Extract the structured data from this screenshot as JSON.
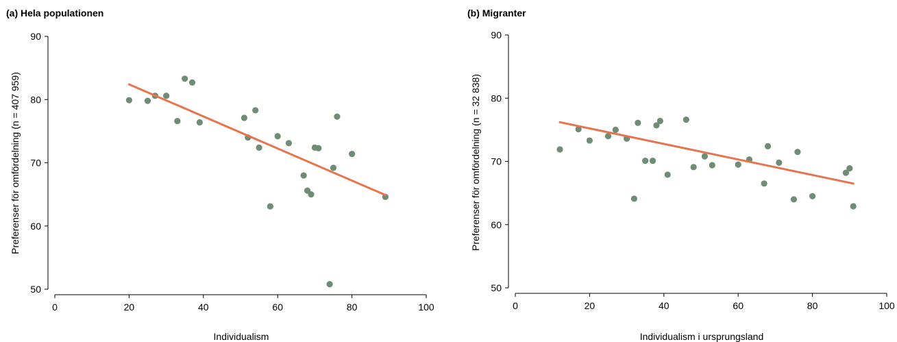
{
  "colors": {
    "points": "#6f8c74",
    "fit": "#e8744f"
  },
  "chart_data": [
    {
      "type": "scatter",
      "panel_title": "(a) Hela populationen",
      "xlabel": "Individualism",
      "ylabel": "Preferenser för omfördelning (n = 407 959)",
      "xlim": [
        0,
        100
      ],
      "ylim": [
        50,
        90
      ],
      "xticks": [
        0,
        20,
        40,
        60,
        80,
        100
      ],
      "yticks": [
        50,
        60,
        70,
        80,
        90
      ],
      "grid": false,
      "points": [
        [
          20,
          79.9
        ],
        [
          25,
          79.8
        ],
        [
          27,
          80.6
        ],
        [
          30,
          80.6
        ],
        [
          33,
          76.6
        ],
        [
          35,
          83.3
        ],
        [
          37,
          82.7
        ],
        [
          39,
          76.4
        ],
        [
          51,
          77.1
        ],
        [
          52,
          74.0
        ],
        [
          54,
          78.3
        ],
        [
          55,
          72.4
        ],
        [
          58,
          63.1
        ],
        [
          60,
          74.2
        ],
        [
          63,
          73.1
        ],
        [
          67,
          68.0
        ],
        [
          68,
          65.6
        ],
        [
          69,
          65.0
        ],
        [
          70,
          72.4
        ],
        [
          71,
          72.3
        ],
        [
          74,
          50.8
        ],
        [
          75,
          69.2
        ],
        [
          76,
          77.3
        ],
        [
          80,
          71.4
        ],
        [
          89,
          64.6
        ]
      ],
      "fit_line": [
        [
          20,
          82.4
        ],
        [
          89,
          64.9
        ]
      ]
    },
    {
      "type": "scatter",
      "panel_title": "(b) Migranter",
      "xlabel": "Individualism i ursprungsland",
      "ylabel": "Preferenser för omfördelning (n = 32 838)",
      "xlim": [
        0,
        100
      ],
      "ylim": [
        50,
        90
      ],
      "xticks": [
        0,
        20,
        40,
        60,
        80,
        100
      ],
      "yticks": [
        50,
        60,
        70,
        80,
        90
      ],
      "grid": false,
      "points": [
        [
          12,
          71.9
        ],
        [
          17,
          75.1
        ],
        [
          20,
          73.3
        ],
        [
          25,
          74.0
        ],
        [
          27,
          75.0
        ],
        [
          30,
          73.6
        ],
        [
          32,
          64.1
        ],
        [
          33,
          76.1
        ],
        [
          35,
          70.1
        ],
        [
          37,
          70.1
        ],
        [
          38,
          75.7
        ],
        [
          39,
          76.4
        ],
        [
          41,
          67.9
        ],
        [
          46,
          76.6
        ],
        [
          48,
          69.1
        ],
        [
          51,
          70.8
        ],
        [
          53,
          69.4
        ],
        [
          60,
          69.5
        ],
        [
          63,
          70.3
        ],
        [
          67,
          66.5
        ],
        [
          68,
          72.4
        ],
        [
          71,
          69.8
        ],
        [
          75,
          64.0
        ],
        [
          76,
          71.5
        ],
        [
          80,
          64.5
        ],
        [
          89,
          68.2
        ],
        [
          90,
          68.9
        ],
        [
          91,
          62.9
        ]
      ],
      "fit_line": [
        [
          12,
          76.2
        ],
        [
          91,
          66.5
        ]
      ]
    }
  ]
}
